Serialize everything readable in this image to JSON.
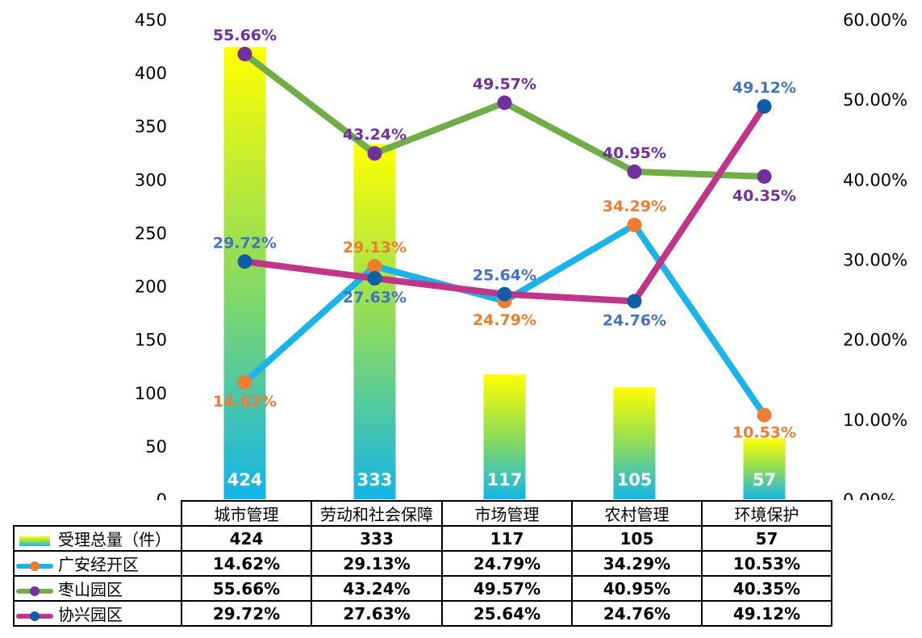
{
  "chart_data": {
    "type": "bar",
    "categories": [
      "城市管理",
      "劳动和社会保障",
      "市场管理",
      "农村管理",
      "环境保护"
    ],
    "bar_series": {
      "name": "受理总量（件）",
      "values": [
        424,
        333,
        117,
        105,
        57
      ],
      "axis": "left"
    },
    "line_series": [
      {
        "name": "广安经开区",
        "values": [
          14.62,
          29.13,
          24.79,
          34.29,
          10.53
        ],
        "labels": [
          "14.62%",
          "29.13%",
          "24.79%",
          "34.29%",
          "10.53%"
        ],
        "line_color": "#19B4EA",
        "marker_color": "#ED7D31",
        "label_color": "#ED7D31"
      },
      {
        "name": "枣山园区",
        "values": [
          55.66,
          43.24,
          49.57,
          40.95,
          40.35
        ],
        "labels": [
          "55.66%",
          "43.24%",
          "49.57%",
          "40.95%",
          "40.35%"
        ],
        "line_color": "#70AD47",
        "marker_color": "#7030A0",
        "label_color": "#7030A0"
      },
      {
        "name": "协兴园区",
        "values": [
          29.72,
          27.63,
          25.64,
          24.76,
          49.12
        ],
        "labels": [
          "29.72%",
          "27.63%",
          "25.64%",
          "24.76%",
          "49.12%"
        ],
        "line_color": "#C0348A",
        "marker_color": "#0F5FA6",
        "label_color": "#4472C4"
      }
    ],
    "y_left": {
      "min": 0,
      "max": 450,
      "ticks": [
        "0",
        "50",
        "100",
        "150",
        "200",
        "250",
        "300",
        "350",
        "400",
        "450"
      ]
    },
    "y_right": {
      "min": 0,
      "max": 60,
      "ticks": [
        "0.00%",
        "10.00%",
        "20.00%",
        "30.00%",
        "40.00%",
        "50.00%",
        "60.00%"
      ]
    },
    "bar_gradient": [
      "#FFFF00",
      "#8EDC5A",
      "#13B5EA"
    ],
    "grid": false,
    "legend": "data-table"
  }
}
